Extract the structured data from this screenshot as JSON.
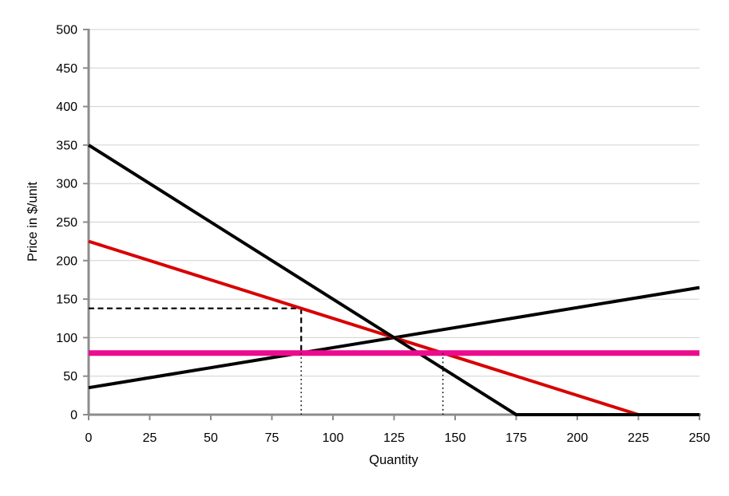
{
  "chart_data": {
    "type": "line",
    "title": "",
    "xlabel": "Quantity",
    "ylabel": "Price in $/unit",
    "xlim": [
      0,
      250
    ],
    "ylim": [
      0,
      500
    ],
    "x_ticks": [
      0,
      25,
      50,
      75,
      100,
      125,
      150,
      175,
      200,
      225,
      250
    ],
    "y_ticks": [
      0,
      50,
      100,
      150,
      200,
      250,
      300,
      350,
      400,
      450,
      500
    ],
    "grid": "horizontal-only",
    "legend_position": "none",
    "colors": {
      "axis": "#8C8C8C",
      "gridline": "#D0D0D0",
      "demand_black": "#000000",
      "demand_red": "#D80000",
      "supply": "#000000",
      "price_line": "#EC0A8E",
      "guides": "#000000"
    },
    "series": [
      {
        "name": "guide-dashed-horizontal-p138",
        "color": "#000000",
        "width": 2.2,
        "style": "dashed",
        "points": [
          [
            0,
            138
          ],
          [
            87,
            138
          ]
        ]
      },
      {
        "name": "guide-dashed-vertical-q87-upper",
        "color": "#000000",
        "width": 2.2,
        "style": "dashed",
        "points": [
          [
            87,
            138
          ],
          [
            87,
            80
          ]
        ]
      },
      {
        "name": "supply-curve",
        "color": "#000000",
        "width": 4,
        "style": "solid",
        "points": [
          [
            0,
            35
          ],
          [
            250,
            165
          ]
        ]
      },
      {
        "name": "demand-curve-red",
        "color": "#D80000",
        "width": 4,
        "style": "solid",
        "points": [
          [
            0,
            225
          ],
          [
            225,
            0
          ],
          [
            250,
            0
          ]
        ]
      },
      {
        "name": "demand-curve-black",
        "color": "#000000",
        "width": 4,
        "style": "solid",
        "points": [
          [
            0,
            350
          ],
          [
            175,
            0
          ],
          [
            250,
            0
          ]
        ]
      },
      {
        "name": "price-line-pink-p80",
        "color": "#EC0A8E",
        "width": 7,
        "style": "solid",
        "points": [
          [
            0,
            80
          ],
          [
            250,
            80
          ]
        ]
      },
      {
        "name": "guide-dotted-vertical-q87-lower",
        "color": "#000000",
        "width": 1.4,
        "style": "dotted",
        "points": [
          [
            87,
            80
          ],
          [
            87,
            0
          ]
        ]
      },
      {
        "name": "guide-dotted-vertical-q145",
        "color": "#000000",
        "width": 1.4,
        "style": "dotted",
        "points": [
          [
            145,
            80
          ],
          [
            145,
            0
          ]
        ]
      }
    ],
    "key_values": {
      "price_line_level": 80,
      "guide_price": 138,
      "quantity_supplied_at_80": 87,
      "quantity_demanded_at_80": 145,
      "equilibrium": [
        125,
        100
      ]
    }
  }
}
